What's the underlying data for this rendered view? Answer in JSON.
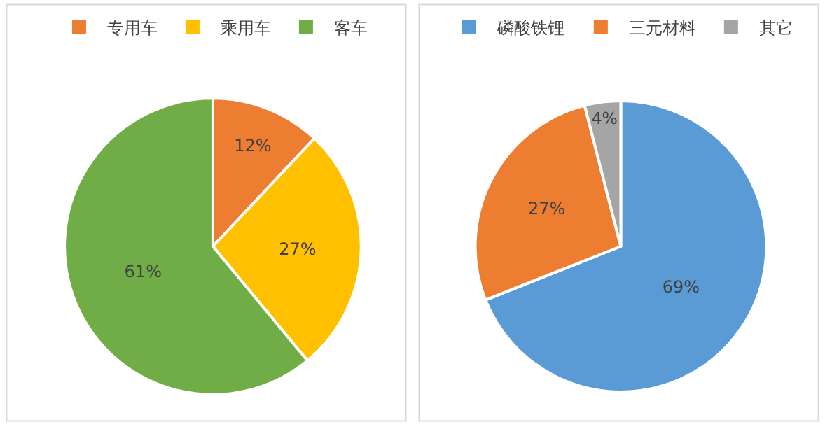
{
  "chart_data": [
    {
      "type": "pie",
      "categories": [
        "专用车",
        "乘用车",
        "客车"
      ],
      "values": [
        12,
        27,
        61
      ],
      "colors": [
        "#ed7d31",
        "#ffc000",
        "#70ad47"
      ],
      "value_labels": [
        "12%",
        "27%",
        "61%"
      ],
      "legend": "top"
    },
    {
      "type": "pie",
      "categories": [
        "磷酸铁锂",
        "三元材料",
        "其它"
      ],
      "values": [
        69,
        27,
        4
      ],
      "colors": [
        "#5b9bd5",
        "#ed7d31",
        "#a5a5a5"
      ],
      "value_labels": [
        "69%",
        "27%",
        "4%"
      ],
      "legend": "top"
    }
  ]
}
